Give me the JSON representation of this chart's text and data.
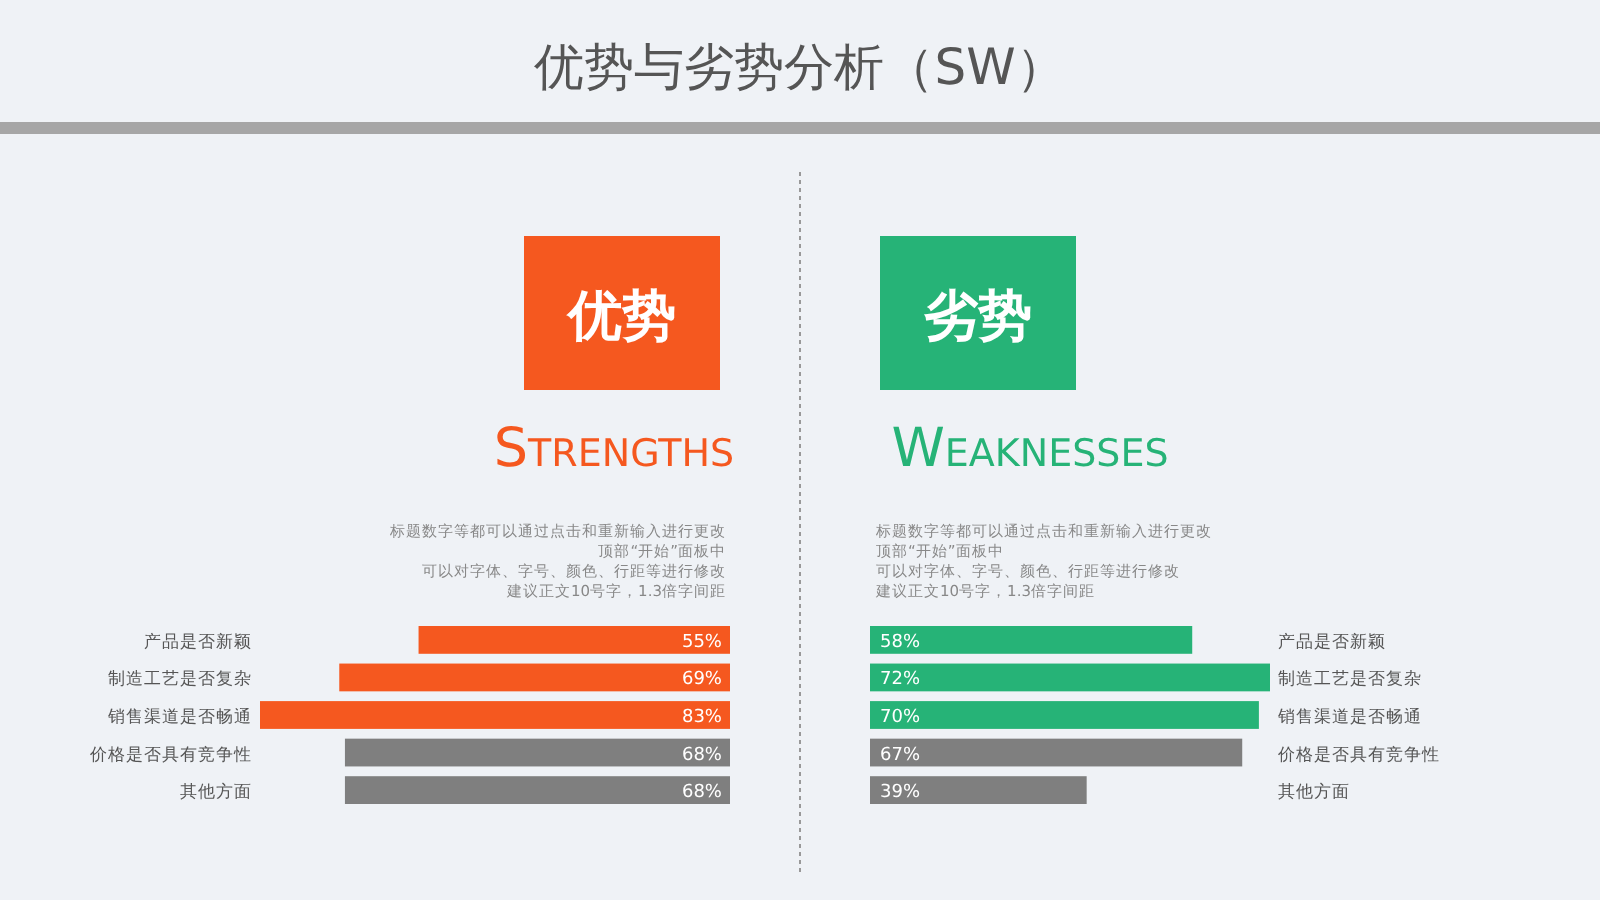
{
  "chart_data": [
    {
      "type": "bar",
      "orientation": "horizontal",
      "title": "优势",
      "subtitle": "Strengths",
      "annotations": [
        "优势与劣势分析（SW）",
        "标题数字等都可以通过点击和重新输入进行更改",
        "顶部“开始”面板中",
        "可以对字体、字号、颜色、行距等进行修改",
        "建议正文10号字，1.3倍字间距"
      ],
      "categories": [
        "产品是否新颖",
        "制造工艺是否复杂",
        "销售渠道是否畅通",
        "价格是否具有竞争性",
        "其他方面"
      ],
      "values": [
        55,
        69,
        83,
        68,
        68
      ],
      "colors": [
        "#f5581f",
        "#f5581f",
        "#f5581f",
        "#7f7f7f",
        "#7f7f7f"
      ],
      "value_labels": [
        "55%",
        "69%",
        "83%",
        "68%",
        "68%"
      ]
    },
    {
      "type": "bar",
      "orientation": "horizontal",
      "title": "劣势",
      "subtitle": "Weaknesses",
      "annotations": [
        "标题数字等都可以通过点击和重新输入进行更改",
        "顶部“开始”面板中",
        "可以对字体、字号、颜色、行距等进行修改",
        "建议正文10号字，1.3倍字间距"
      ],
      "categories": [
        "产品是否新颖",
        "制造工艺是否复杂",
        "销售渠道是否畅通",
        "价格是否具有竞争性",
        "其他方面"
      ],
      "values": [
        58,
        72,
        70,
        67,
        39
      ],
      "colors": [
        "#26b377",
        "#26b377",
        "#26b377",
        "#7f7f7f",
        "#7f7f7f"
      ],
      "value_labels": [
        "58%",
        "72%",
        "70%",
        "67%",
        "39%"
      ]
    }
  ]
}
